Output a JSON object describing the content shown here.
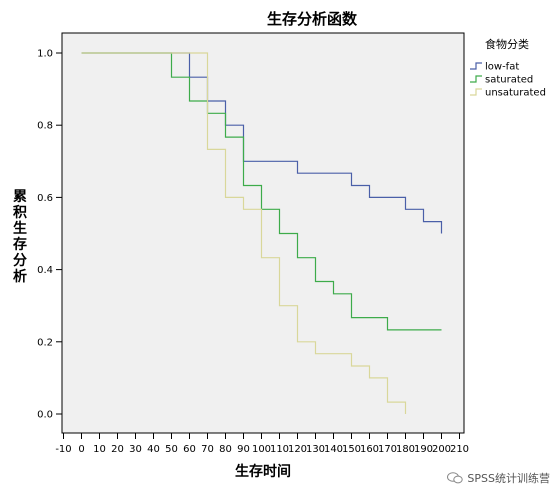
{
  "chart_data": {
    "type": "line",
    "step": true,
    "title": "生存分析函数",
    "xlabel": "生存时间",
    "ylabel": "累积生存分析",
    "xlim": [
      -10,
      210
    ],
    "ylim": [
      0,
      1.0
    ],
    "x_ticks": [
      -10,
      0,
      10,
      20,
      30,
      40,
      50,
      60,
      70,
      80,
      90,
      100,
      110,
      120,
      130,
      140,
      150,
      160,
      170,
      180,
      190,
      200,
      210
    ],
    "y_ticks": [
      "0.0",
      "0.2",
      "0.4",
      "0.6",
      "0.8",
      "1.0"
    ],
    "grid": false,
    "legend_title": "食物分类",
    "legend_position": "top-right outside",
    "series": [
      {
        "name": "low-fat",
        "color": "#4a5fa8",
        "points": [
          [
            0,
            1.0
          ],
          [
            60,
            1.0
          ],
          [
            60,
            0.933
          ],
          [
            70,
            0.933
          ],
          [
            70,
            0.867
          ],
          [
            80,
            0.867
          ],
          [
            80,
            0.8
          ],
          [
            90,
            0.8
          ],
          [
            90,
            0.7
          ],
          [
            120,
            0.7
          ],
          [
            120,
            0.667
          ],
          [
            150,
            0.667
          ],
          [
            150,
            0.633
          ],
          [
            160,
            0.633
          ],
          [
            160,
            0.6
          ],
          [
            180,
            0.6
          ],
          [
            180,
            0.567
          ],
          [
            190,
            0.567
          ],
          [
            190,
            0.533
          ],
          [
            200,
            0.533
          ],
          [
            200,
            0.5
          ]
        ]
      },
      {
        "name": "saturated",
        "color": "#3dab4a",
        "points": [
          [
            0,
            1.0
          ],
          [
            50,
            1.0
          ],
          [
            50,
            0.933
          ],
          [
            60,
            0.933
          ],
          [
            60,
            0.867
          ],
          [
            70,
            0.867
          ],
          [
            70,
            0.833
          ],
          [
            80,
            0.833
          ],
          [
            80,
            0.767
          ],
          [
            90,
            0.767
          ],
          [
            90,
            0.633
          ],
          [
            100,
            0.633
          ],
          [
            100,
            0.567
          ],
          [
            110,
            0.567
          ],
          [
            110,
            0.5
          ],
          [
            120,
            0.5
          ],
          [
            120,
            0.433
          ],
          [
            130,
            0.433
          ],
          [
            130,
            0.367
          ],
          [
            140,
            0.367
          ],
          [
            140,
            0.333
          ],
          [
            150,
            0.333
          ],
          [
            150,
            0.267
          ],
          [
            170,
            0.267
          ],
          [
            170,
            0.233
          ],
          [
            200,
            0.233
          ]
        ]
      },
      {
        "name": "unsaturated",
        "color": "#d9d79a",
        "points": [
          [
            0,
            1.0
          ],
          [
            70,
            1.0
          ],
          [
            70,
            0.733
          ],
          [
            80,
            0.733
          ],
          [
            80,
            0.6
          ],
          [
            90,
            0.6
          ],
          [
            90,
            0.567
          ],
          [
            100,
            0.567
          ],
          [
            100,
            0.433
          ],
          [
            110,
            0.433
          ],
          [
            110,
            0.3
          ],
          [
            120,
            0.3
          ],
          [
            120,
            0.2
          ],
          [
            130,
            0.2
          ],
          [
            130,
            0.167
          ],
          [
            150,
            0.167
          ],
          [
            150,
            0.133
          ],
          [
            160,
            0.133
          ],
          [
            160,
            0.1
          ],
          [
            170,
            0.1
          ],
          [
            170,
            0.033
          ],
          [
            180,
            0.033
          ],
          [
            180,
            0.0
          ]
        ]
      }
    ]
  },
  "watermark": "SPSS统计训练营"
}
